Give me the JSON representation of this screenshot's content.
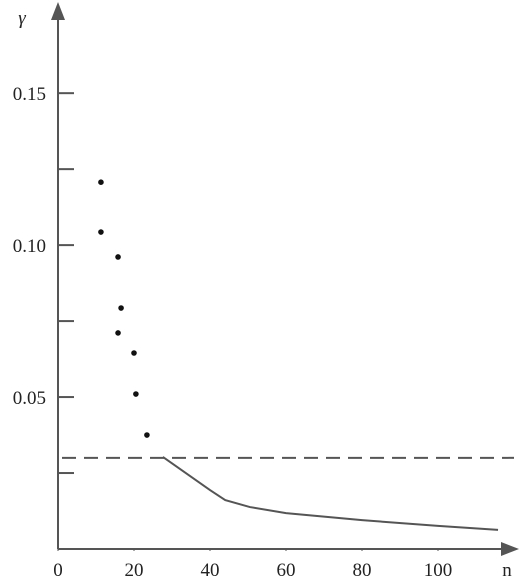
{
  "chart_data": {
    "type": "scatter",
    "x_label": "n",
    "y_label": "γ",
    "xlim": [
      0,
      120
    ],
    "ylim": [
      0,
      0.18
    ],
    "xticks": [
      0,
      20,
      40,
      60,
      80,
      100
    ],
    "yticks": [
      {
        "value": 0.05,
        "label": "0.05"
      },
      {
        "value": 0.1,
        "label": "0.10"
      },
      {
        "value": 0.15,
        "label": "0.15"
      }
    ],
    "y_minor_ticks": [
      0.025,
      0.075,
      0.125
    ],
    "points": {
      "color": "#111111",
      "x": [
        11.3,
        11.3,
        15.8,
        16.6,
        15.8,
        20,
        20.5,
        23.4
      ],
      "y": [
        0.1207,
        0.1043,
        0.0961,
        0.0793,
        0.0711,
        0.0645,
        0.051,
        0.0375
      ]
    },
    "curve": {
      "color": "#555555",
      "x": [
        27.6,
        40,
        44,
        50.5,
        60,
        80,
        100,
        115.8
      ],
      "y": [
        0.0303,
        0.0194,
        0.0161,
        0.0138,
        0.0118,
        0.0095,
        0.0076,
        0.0063
      ]
    },
    "hline": {
      "value": 0.03,
      "color": "#555555",
      "dash": true
    }
  }
}
